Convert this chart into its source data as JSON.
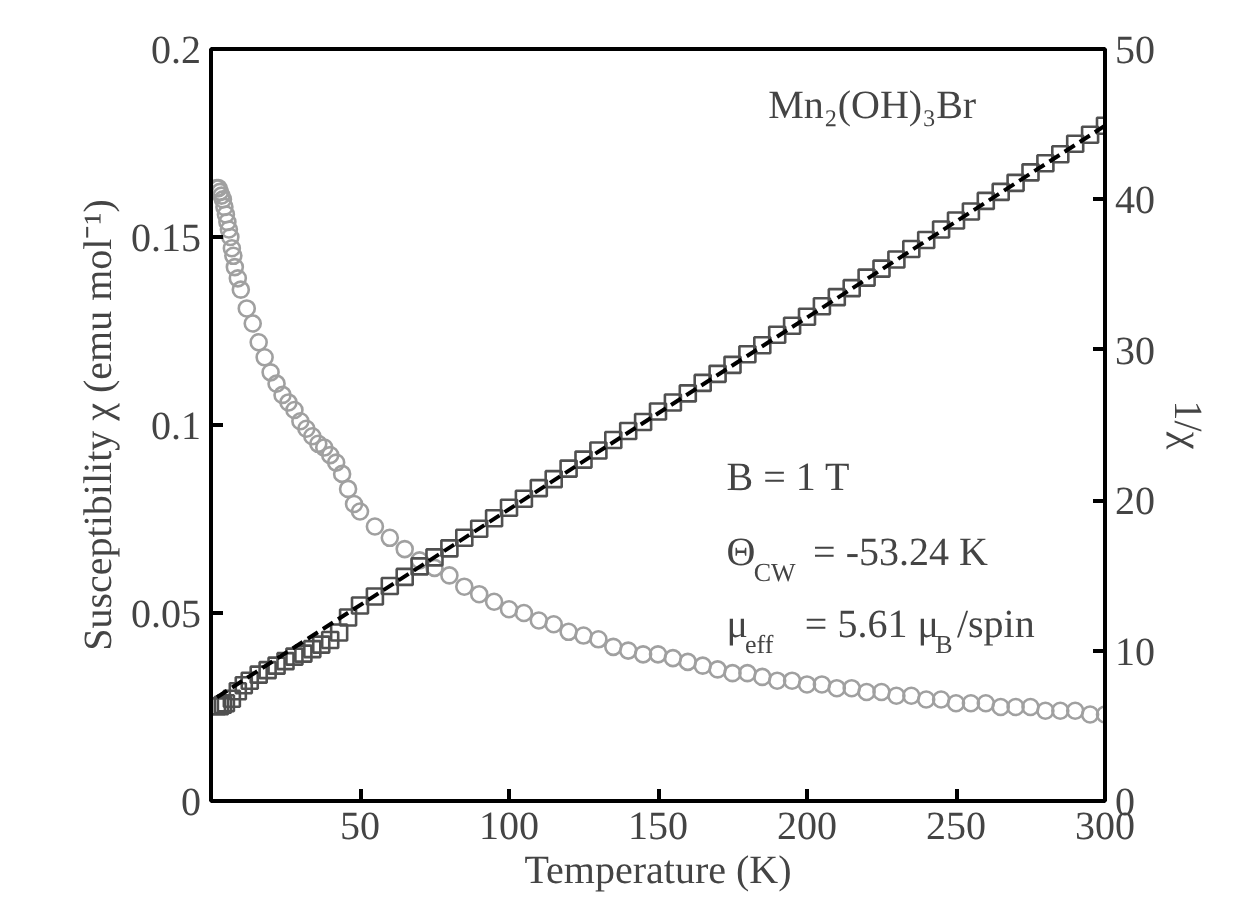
{
  "chart_data": {
    "type": "scatter",
    "xlabel": "Temperature (K)",
    "ylabel": "Susceptibility χ (emu mol⁻¹)",
    "y2label": "1/χ",
    "xlim": [
      0,
      300
    ],
    "xticks": [
      50,
      100,
      150,
      200,
      250,
      300
    ],
    "ylim": [
      0,
      0.2
    ],
    "yticks": [
      0,
      0.05,
      0.1,
      0.15,
      0.2
    ],
    "y2lim": [
      0,
      50
    ],
    "y2ticks": [
      0,
      10,
      20,
      30,
      40,
      50
    ],
    "grid": false,
    "series": [
      {
        "marker": "circle",
        "color": "#a0a0a0",
        "x": [
          2,
          2.5,
          3,
          3.5,
          4,
          4.5,
          5,
          5.5,
          6,
          6.5,
          7,
          7.5,
          8,
          9,
          10,
          12,
          14,
          16,
          18,
          20,
          22,
          24,
          26,
          28,
          30,
          32,
          34,
          36,
          38,
          40,
          42,
          44,
          46,
          48,
          50,
          55,
          60,
          65,
          70,
          75,
          80,
          85,
          90,
          95,
          100,
          105,
          110,
          115,
          120,
          125,
          130,
          135,
          140,
          145,
          150,
          155,
          160,
          165,
          170,
          175,
          180,
          185,
          190,
          195,
          200,
          205,
          210,
          215,
          220,
          225,
          230,
          235,
          240,
          245,
          250,
          255,
          260,
          265,
          270,
          275,
          280,
          285,
          290,
          295,
          300
        ],
        "values": [
          0.163,
          0.163,
          0.162,
          0.161,
          0.16,
          0.158,
          0.156,
          0.154,
          0.152,
          0.15,
          0.147,
          0.145,
          0.142,
          0.139,
          0.136,
          0.131,
          0.127,
          0.122,
          0.118,
          0.114,
          0.111,
          0.108,
          0.106,
          0.104,
          0.101,
          0.099,
          0.097,
          0.095,
          0.094,
          0.092,
          0.09,
          0.087,
          0.083,
          0.079,
          0.077,
          0.073,
          0.07,
          0.067,
          0.064,
          0.062,
          0.06,
          0.057,
          0.055,
          0.053,
          0.051,
          0.05,
          0.048,
          0.047,
          0.045,
          0.044,
          0.043,
          0.041,
          0.04,
          0.039,
          0.039,
          0.038,
          0.037,
          0.036,
          0.035,
          0.034,
          0.034,
          0.033,
          0.032,
          0.032,
          0.031,
          0.031,
          0.03,
          0.03,
          0.029,
          0.029,
          0.028,
          0.028,
          0.027,
          0.027,
          0.026,
          0.026,
          0.026,
          0.025,
          0.025,
          0.025,
          0.024,
          0.024,
          0.024,
          0.023,
          0.023
        ]
      },
      {
        "marker": "square",
        "color": "#505050",
        "axis": "y2",
        "x": [
          2,
          3,
          4,
          5,
          7,
          9,
          11,
          13,
          16,
          19,
          22,
          25,
          28,
          31,
          34,
          37,
          40,
          43,
          46,
          50,
          55,
          60,
          65,
          70,
          75,
          80,
          85,
          90,
          95,
          100,
          105,
          110,
          115,
          120,
          125,
          130,
          135,
          140,
          145,
          150,
          155,
          160,
          165,
          170,
          175,
          180,
          185,
          190,
          195,
          200,
          205,
          210,
          215,
          220,
          225,
          230,
          235,
          240,
          245,
          250,
          255,
          260,
          265,
          270,
          275,
          280,
          285,
          290,
          295,
          300
        ],
        "values": [
          6.3,
          6.3,
          6.4,
          6.5,
          6.8,
          7.3,
          7.7,
          8.0,
          8.4,
          8.7,
          9.0,
          9.3,
          9.6,
          9.8,
          10.1,
          10.4,
          10.7,
          11.2,
          12.2,
          13.0,
          13.6,
          14.3,
          14.9,
          15.6,
          16.2,
          16.8,
          17.5,
          18.1,
          18.8,
          19.5,
          20.1,
          20.8,
          21.4,
          22.1,
          22.7,
          23.3,
          24.0,
          24.6,
          25.2,
          25.9,
          26.5,
          27.1,
          27.8,
          28.4,
          29.0,
          29.7,
          30.3,
          31.0,
          31.6,
          32.2,
          32.9,
          33.5,
          34.1,
          34.8,
          35.4,
          36.0,
          36.7,
          37.3,
          38.0,
          38.6,
          39.2,
          39.9,
          40.5,
          41.1,
          41.8,
          42.4,
          43.0,
          43.7,
          44.3,
          44.9
        ]
      },
      {
        "type": "line",
        "line_style": "dashed",
        "color": "#000000",
        "axis": "y2",
        "x": [
          2,
          300
        ],
        "values": [
          6.9,
          44.9
        ]
      }
    ],
    "annotations": [
      "Mn₂(OH)₃Br",
      "B = 1 T",
      "Θ$_{CW}$ = -53.24 K",
      "μ$_{eff}$ = 5.61 μ$_{B}$/spin"
    ]
  }
}
